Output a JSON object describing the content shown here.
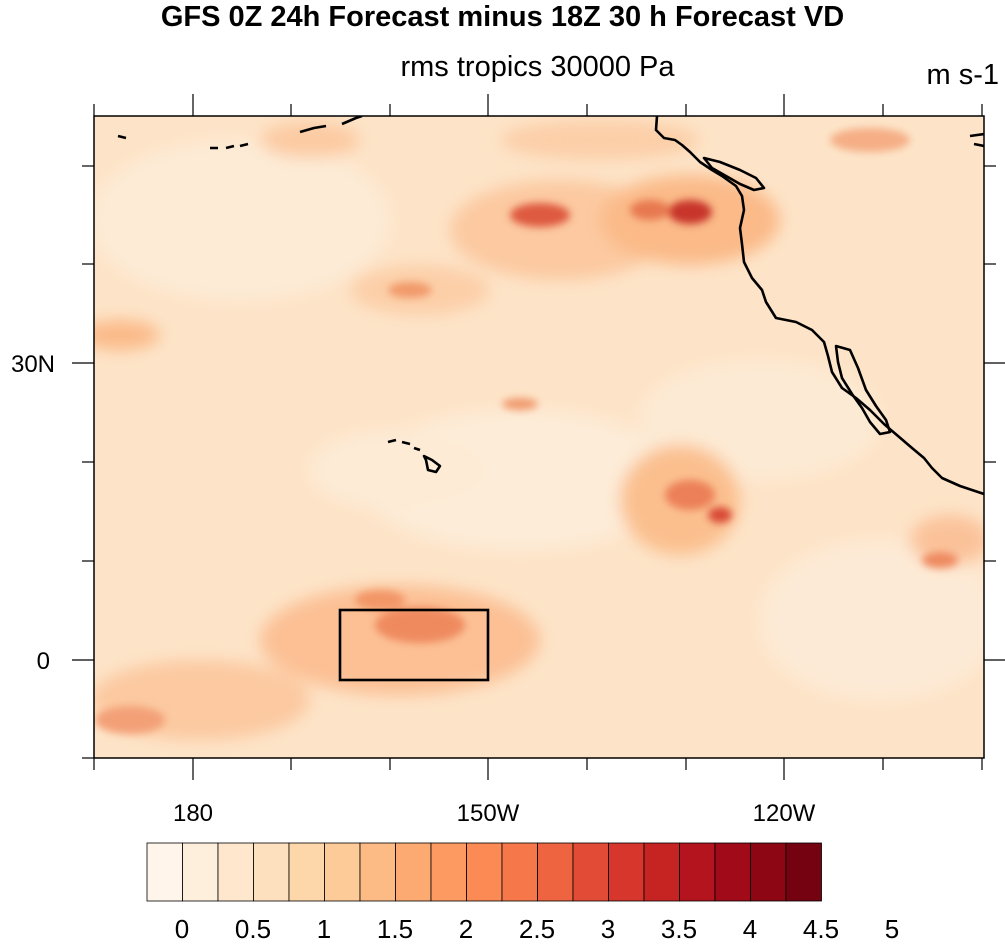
{
  "title": "GFS 0Z 24h Forecast minus 18Z 30 h Forecast VD",
  "subtitle": "rms tropics 30000 Pa",
  "units": "m s-1",
  "axes": {
    "x_ticks": [
      "180",
      "150W",
      "120W"
    ],
    "y_ticks": [
      "30N",
      "0"
    ]
  },
  "colorbar": {
    "labels": [
      "0",
      "0.5",
      "1",
      "1.5",
      "2",
      "2.5",
      "3",
      "3.5",
      "4",
      "4.5",
      "5"
    ],
    "colors": [
      "#fff5eb",
      "#feefdc",
      "#fee7cc",
      "#fde0bd",
      "#fdd6a9",
      "#fccb97",
      "#fcbb84",
      "#fcaa72",
      "#fc9a62",
      "#fb8a55",
      "#f6784a",
      "#ee6340",
      "#e24b35",
      "#d6362b",
      "#c62423",
      "#b4141d",
      "#a10a19",
      "#8c0614",
      "#750210"
    ]
  },
  "map_colors": {
    "base": "#fde4c8",
    "coast": "#000000"
  }
}
